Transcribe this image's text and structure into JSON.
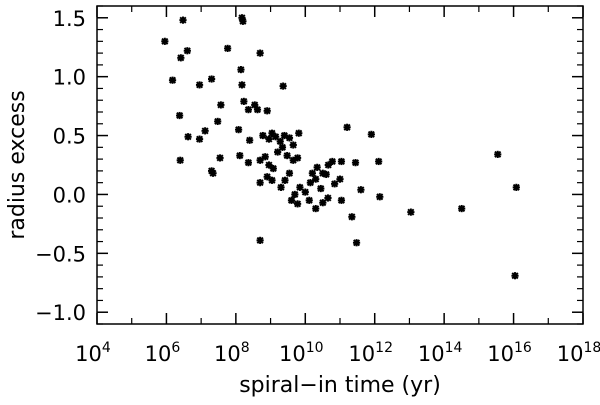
{
  "chart_data": {
    "type": "scatter",
    "xlabel": "spiral−in time (yr)",
    "ylabel": "radius excess",
    "x_scale": "log",
    "xlim": [
      10000.0,
      1e+18
    ],
    "ylim": [
      -1.1,
      1.6
    ],
    "x_ticks": [
      {
        "base": "10",
        "exp": "4"
      },
      {
        "base": "10",
        "exp": "6"
      },
      {
        "base": "10",
        "exp": "8"
      },
      {
        "base": "10",
        "exp": "10"
      },
      {
        "base": "10",
        "exp": "12"
      },
      {
        "base": "10",
        "exp": "14"
      },
      {
        "base": "10",
        "exp": "16"
      },
      {
        "base": "10",
        "exp": "18"
      }
    ],
    "y_ticks": [
      "−1.0",
      "−0.5",
      "0.0",
      "0.5",
      "1.0",
      "1.5"
    ],
    "y_tick_values": [
      -1.0,
      -0.5,
      0.0,
      0.5,
      1.0,
      1.5
    ],
    "marker": "asterisk",
    "color": "#000000",
    "points": [
      {
        "x": 900000.0,
        "y": 1.3
      },
      {
        "x": 3000000.0,
        "y": 1.48
      },
      {
        "x": 150000000.0,
        "y": 1.5
      },
      {
        "x": 160000000.0,
        "y": 1.47
      },
      {
        "x": 1500000.0,
        "y": 0.97
      },
      {
        "x": 4000000.0,
        "y": 1.22
      },
      {
        "x": 2600000.0,
        "y": 1.16
      },
      {
        "x": 58000000.0,
        "y": 1.24
      },
      {
        "x": 9000000.0,
        "y": 0.93
      },
      {
        "x": 20000000.0,
        "y": 0.98
      },
      {
        "x": 140000000.0,
        "y": 1.06
      },
      {
        "x": 500000000.0,
        "y": 1.2
      },
      {
        "x": 150000000.0,
        "y": 0.93
      },
      {
        "x": 170000000.0,
        "y": 0.79
      },
      {
        "x": 350000000.0,
        "y": 0.76
      },
      {
        "x": 2300000000.0,
        "y": 0.92
      },
      {
        "x": 2400000.0,
        "y": 0.67
      },
      {
        "x": 37000000.0,
        "y": 0.76
      },
      {
        "x": 230000000.0,
        "y": 0.72
      },
      {
        "x": 420000000.0,
        "y": 0.72
      },
      {
        "x": 800000000.0,
        "y": 0.71
      },
      {
        "x": 4200000.0,
        "y": 0.49
      },
      {
        "x": 9000000.0,
        "y": 0.47
      },
      {
        "x": 13000000.0,
        "y": 0.54
      },
      {
        "x": 30000000.0,
        "y": 0.62
      },
      {
        "x": 120000000.0,
        "y": 0.55
      },
      {
        "x": 250000000.0,
        "y": 0.46
      },
      {
        "x": 600000000.0,
        "y": 0.5
      },
      {
        "x": 900000000.0,
        "y": 0.47
      },
      {
        "x": 1100000000.0,
        "y": 0.52
      },
      {
        "x": 1400000000.0,
        "y": 0.49
      },
      {
        "x": 1900000000.0,
        "y": 0.45
      },
      {
        "x": 2500000000.0,
        "y": 0.5
      },
      {
        "x": 3500000000.0,
        "y": 0.48
      },
      {
        "x": 4500000000.0,
        "y": 0.42
      },
      {
        "x": 6500000000.0,
        "y": 0.52
      },
      {
        "x": 160000000000.0,
        "y": 0.57
      },
      {
        "x": 800000000000.0,
        "y": 0.51
      },
      {
        "x": 2500000.0,
        "y": 0.29
      },
      {
        "x": 20000000.0,
        "y": 0.2
      },
      {
        "x": 22000000.0,
        "y": 0.18
      },
      {
        "x": 35000000.0,
        "y": 0.31
      },
      {
        "x": 130000000.0,
        "y": 0.33
      },
      {
        "x": 230000000.0,
        "y": 0.27
      },
      {
        "x": 500000000.0,
        "y": 0.29
      },
      {
        "x": 700000000.0,
        "y": 0.32
      },
      {
        "x": 900000000.0,
        "y": 0.25
      },
      {
        "x": 1200000000.0,
        "y": 0.22
      },
      {
        "x": 1600000000.0,
        "y": 0.36
      },
      {
        "x": 2200000000.0,
        "y": 0.4
      },
      {
        "x": 3000000000.0,
        "y": 0.33
      },
      {
        "x": 4500000000.0,
        "y": 0.29
      },
      {
        "x": 6000000000.0,
        "y": 0.31
      },
      {
        "x": 16000000000.0,
        "y": 0.18
      },
      {
        "x": 22000000000.0,
        "y": 0.23
      },
      {
        "x": 32000000000.0,
        "y": 0.18
      },
      {
        "x": 46000000000.0,
        "y": 0.25
      },
      {
        "x": 60000000000.0,
        "y": 0.28
      },
      {
        "x": 110000000000.0,
        "y": 0.28
      },
      {
        "x": 280000000000.0,
        "y": 0.27
      },
      {
        "x": 1300000000000.0,
        "y": 0.28
      },
      {
        "x": 500000000.0,
        "y": 0.1
      },
      {
        "x": 800000000.0,
        "y": 0.15
      },
      {
        "x": 1100000000.0,
        "y": 0.12
      },
      {
        "x": 2000000000.0,
        "y": 0.06
      },
      {
        "x": 2600000000.0,
        "y": 0.12
      },
      {
        "x": 3500000000.0,
        "y": 0.18
      },
      {
        "x": 5000000000.0,
        "y": 0.0
      },
      {
        "x": 7000000000.0,
        "y": 0.06
      },
      {
        "x": 10000000000.0,
        "y": 0.02
      },
      {
        "x": 14000000000.0,
        "y": 0.1
      },
      {
        "x": 20000000000.0,
        "y": 0.13
      },
      {
        "x": 28000000000.0,
        "y": 0.05
      },
      {
        "x": 40000000000.0,
        "y": 0.17
      },
      {
        "x": 70000000000.0,
        "y": 0.09
      },
      {
        "x": 100000000000.0,
        "y": 0.13
      },
      {
        "x": 4000000000.0,
        "y": -0.05
      },
      {
        "x": 6000000000.0,
        "y": -0.08
      },
      {
        "x": 13000000000.0,
        "y": -0.05
      },
      {
        "x": 20000000000.0,
        "y": -0.12
      },
      {
        "x": 32000000000.0,
        "y": -0.07
      },
      {
        "x": 45000000000.0,
        "y": -0.03
      },
      {
        "x": 110000000000.0,
        "y": -0.05
      },
      {
        "x": 400000000000.0,
        "y": 0.04
      },
      {
        "x": 1400000000000.0,
        "y": -0.02
      },
      {
        "x": 220000000000.0,
        "y": -0.19
      },
      {
        "x": 11000000000000.0,
        "y": -0.15
      },
      {
        "x": 320000000000000.0,
        "y": -0.12
      },
      {
        "x": 3500000000000000.0,
        "y": 0.34
      },
      {
        "x": 1.2e+16,
        "y": 0.06
      },
      {
        "x": 1.1e+16,
        "y": -0.69
      },
      {
        "x": 500000000.0,
        "y": -0.39
      },
      {
        "x": 300000000000.0,
        "y": -0.41
      }
    ]
  }
}
